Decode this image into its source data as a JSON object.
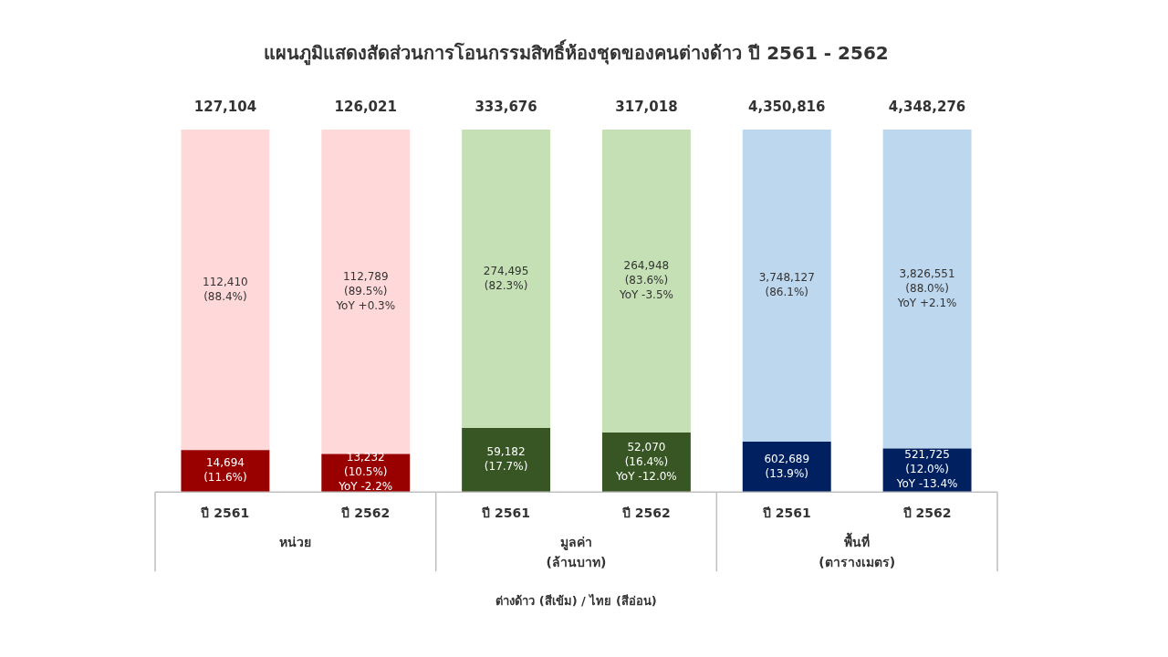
{
  "chart_data": {
    "type": "bar",
    "stacked": true,
    "title": "แผนภูมิแสดงสัดส่วนการโอนกรรมสิทธิ์ห้องชุดของคนต่างด้าว ปี 2561 - 2562",
    "categories": [
      "ปี 2561",
      "ปี 2562",
      "ปี 2561",
      "ปี 2562",
      "ปี 2561",
      "ปี 2562"
    ],
    "series": [
      {
        "colors": [
          "#990000",
          "#990000",
          "#375623",
          "#375623",
          "#002060",
          "#002060"
        ],
        "values": [
          11.6,
          10.5,
          17.7,
          16.4,
          13.9,
          12.0
        ],
        "value_labels": [
          "14,694\n(11.6%)",
          "13,232\n(10.5%)\nYoY -2.2%",
          "59,182\n(17.7%)",
          "52,070\n(16.4%)\nYoY -12.0%",
          "602,689\n(13.9%)",
          "521,725\n(12.0%)\nYoY -13.4%"
        ]
      },
      {
        "colors": [
          "#ffd9d9",
          "#ffd9d9",
          "#c5e0b4",
          "#c5e0b4",
          "#bdd7ee",
          "#bdd7ee"
        ],
        "values": [
          88.4,
          89.5,
          82.3,
          83.6,
          86.1,
          88.0
        ],
        "value_labels": [
          "112,410\n(88.4%)",
          "112,789\n(89.5%)\nYoY +0.3%",
          "274,495\n(82.3%)",
          "264,948\n(83.6%)\nYoY -3.5%",
          "3,748,127\n(86.1%)",
          "3,826,551\n(88.0%)\nYoY +2.1%"
        ]
      }
    ],
    "annotations": [
      "127,104",
      "126,021",
      "333,676",
      "317,018",
      "4,350,816",
      "4,348,276",
      "หน่วย",
      "มูลค่า\n(ล้านบาท)",
      "พื้นที่\n(ตารางเมตร)",
      "ต่างด้าว (สีเข้ม) / ไทย (สีอ่อน)"
    ],
    "grid": false,
    "legend": false,
    "tick_labels": "x"
  }
}
